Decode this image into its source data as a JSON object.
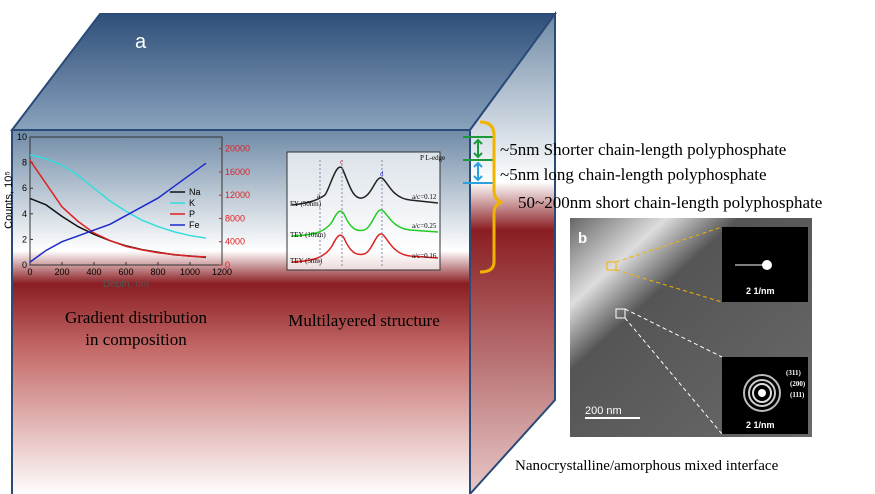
{
  "panel_a": {
    "label": "a",
    "caption_left": [
      "Gradient distribution",
      "in composition"
    ],
    "caption_right": "Multilayered structure",
    "layers": [
      "~5nm Shorter chain-length polyphosphate",
      "~5nm long chain-length polyphosphate",
      "50~200nm short chain-length polyphosphate"
    ]
  },
  "depth_plot": {
    "ylabel": "Counts, 10⁵",
    "xlabel": "Depth, nm",
    "xlim": [
      0,
      1200
    ],
    "xticks": [
      0,
      200,
      400,
      600,
      800,
      1000,
      1200
    ],
    "ylim": [
      0,
      10
    ],
    "yticks": [
      0,
      2,
      4,
      6,
      8,
      10
    ],
    "y2lim": [
      0,
      22000
    ],
    "y2ticks": [
      0,
      4000,
      8000,
      12000,
      16000,
      20000
    ],
    "x": [
      0,
      100,
      200,
      300,
      400,
      500,
      600,
      700,
      800,
      900,
      1000,
      1100
    ],
    "series": [
      {
        "name": "Na",
        "color": "#111111",
        "values": [
          5.2,
          4.7,
          3.8,
          3.0,
          2.4,
          1.9,
          1.5,
          1.2,
          1.0,
          0.8,
          0.7,
          0.6
        ]
      },
      {
        "name": "K",
        "color": "#33dddd",
        "values": [
          8.6,
          8.3,
          7.8,
          7.0,
          6.0,
          5.0,
          4.2,
          3.5,
          3.0,
          2.6,
          2.3,
          2.1
        ]
      },
      {
        "name": "P",
        "color": "#dd2222",
        "axis": "y2",
        "values": [
          18000,
          14000,
          10000,
          7500,
          5500,
          4200,
          3200,
          2600,
          2100,
          1800,
          1500,
          1400
        ]
      },
      {
        "name": "Fe",
        "color": "#1a2acc",
        "axis": "y2",
        "values": [
          500,
          2500,
          4000,
          5000,
          6000,
          7000,
          8500,
          10000,
          11500,
          13500,
          15500,
          17500
        ]
      }
    ]
  },
  "xas_plot": {
    "title": "P L-edge",
    "traces": [
      "FY (50nm)",
      "TEY (10nm)",
      "TEY (5nm)"
    ],
    "ratios": [
      "a/c=0.12",
      "a/c=0.25",
      "a/c=0.16"
    ],
    "peaks": [
      "a",
      "c",
      "d"
    ]
  },
  "panel_b": {
    "label": "b",
    "scale": "200 nm",
    "diffraction_scale": [
      "2 1/nm",
      "2 1/nm"
    ],
    "rings": [
      "(311)",
      "(200)",
      "(111)"
    ],
    "caption": "Nanocrystalline/amorphous mixed interface"
  }
}
